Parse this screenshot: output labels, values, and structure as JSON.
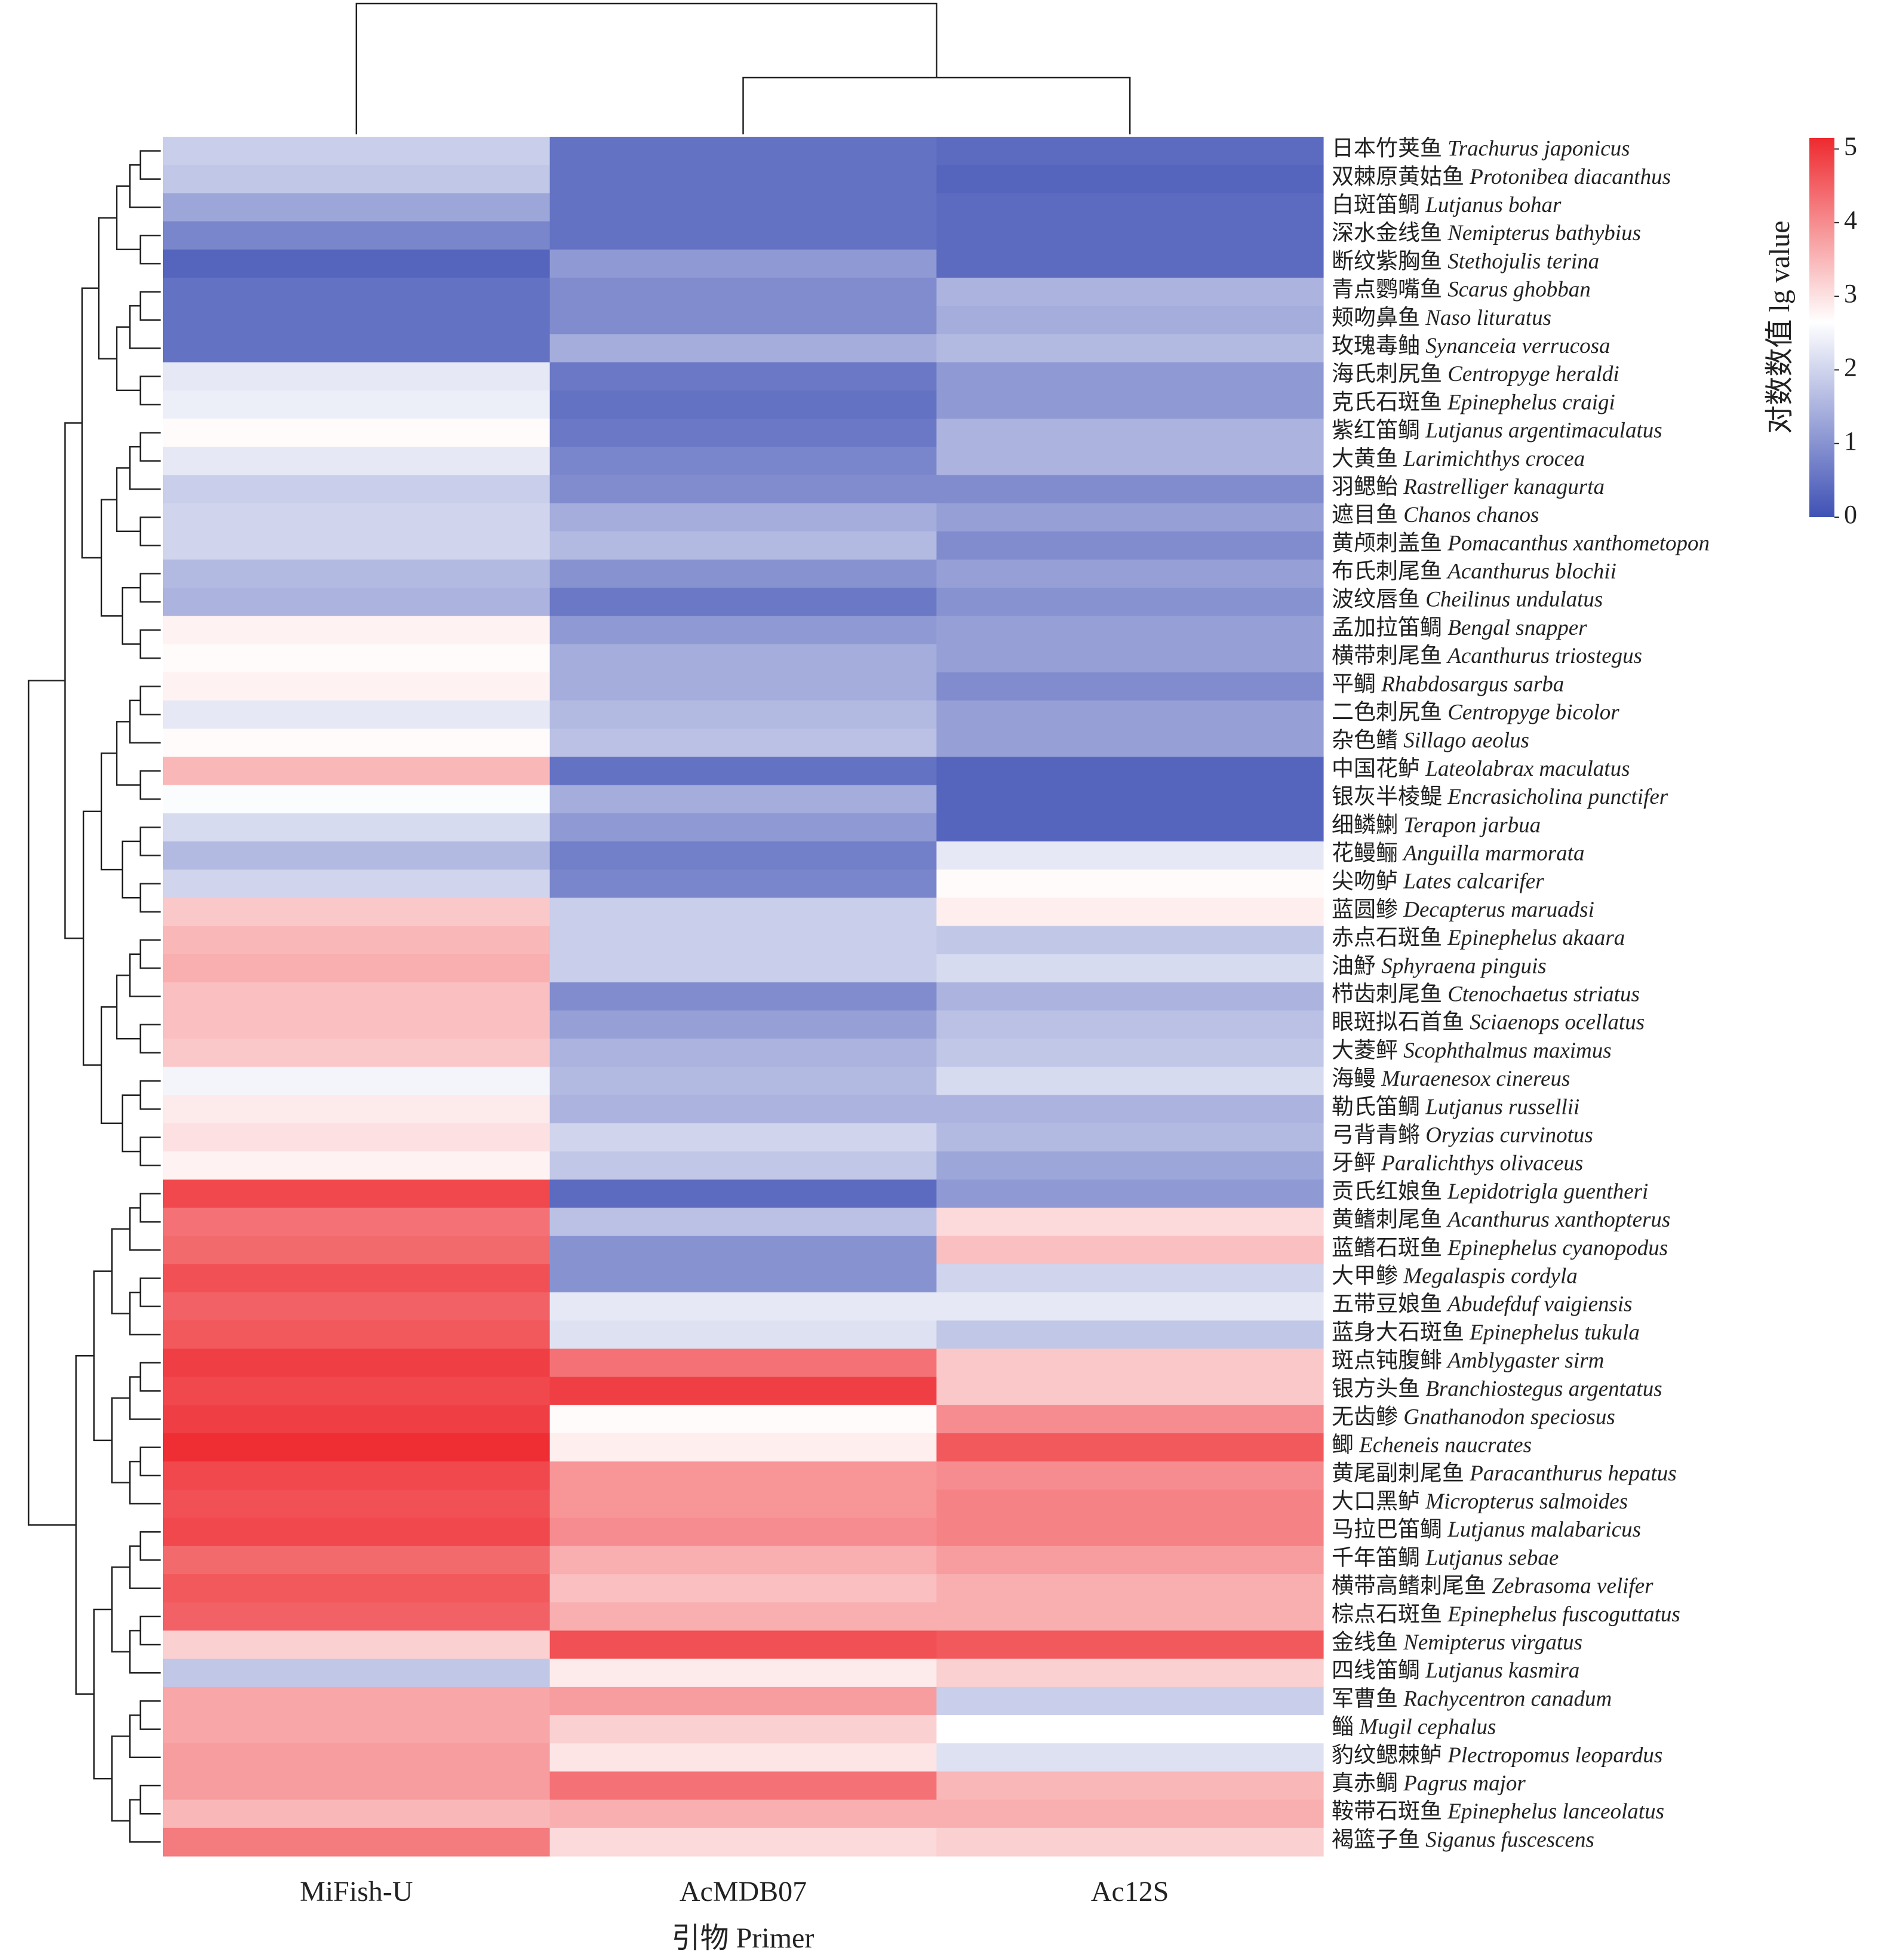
{
  "chart_data": {
    "type": "heatmap",
    "columns": [
      "MiFish-U",
      "AcMDB07",
      "Ac12S"
    ],
    "xlabel": "引物 Primer",
    "colorbar_label": "对数数值 lg value",
    "clim": [
      0,
      5.15
    ],
    "cticks": [
      0,
      1,
      2,
      3,
      4,
      5
    ],
    "colorscale": [
      {
        "value": 0,
        "color": "#3f51b5"
      },
      {
        "value": 2.65,
        "color": "#ffffff"
      },
      {
        "value": 5.15,
        "color": "#ee2a2f"
      }
    ],
    "rows": [
      {
        "cn": "日本竹荚鱼",
        "latin": "Trachurus japonicus"
      },
      {
        "cn": "双棘原黄姑鱼",
        "latin": "Protonibea diacanthus"
      },
      {
        "cn": "白斑笛鲷",
        "latin": "Lutjanus bohar"
      },
      {
        "cn": "深水金线鱼",
        "latin": "Nemipterus bathybius"
      },
      {
        "cn": "断纹紫胸鱼",
        "latin": "Stethojulis terina"
      },
      {
        "cn": "青点鹦嘴鱼",
        "latin": "Scarus ghobban"
      },
      {
        "cn": "颊吻鼻鱼",
        "latin": "Naso lituratus"
      },
      {
        "cn": "玫瑰毒鲉",
        "latin": "Synanceia verrucosa"
      },
      {
        "cn": "海氏刺尻鱼",
        "latin": "Centropyge heraldi"
      },
      {
        "cn": "克氏石斑鱼",
        "latin": "Epinephelus craigi"
      },
      {
        "cn": "紫红笛鲷",
        "latin": "Lutjanus argentimaculatus"
      },
      {
        "cn": "大黄鱼",
        "latin": "Larimichthys crocea"
      },
      {
        "cn": "羽鳃鲐",
        "latin": "Rastrelliger kanagurta"
      },
      {
        "cn": "遮目鱼",
        "latin": "Chanos chanos"
      },
      {
        "cn": "黄颅刺盖鱼",
        "latin": "Pomacanthus xanthometopon"
      },
      {
        "cn": "布氏刺尾鱼",
        "latin": "Acanthurus blochii"
      },
      {
        "cn": "波纹唇鱼",
        "latin": "Cheilinus undulatus"
      },
      {
        "cn": "孟加拉笛鲷",
        "latin": "Bengal snapper"
      },
      {
        "cn": "横带刺尾鱼",
        "latin": "Acanthurus triostegus"
      },
      {
        "cn": "平鲷",
        "latin": "Rhabdosargus sarba"
      },
      {
        "cn": "二色刺尻鱼",
        "latin": "Centropyge bicolor"
      },
      {
        "cn": "杂色鳍",
        "latin": "Sillago aeolus"
      },
      {
        "cn": "中国花鲈",
        "latin": "Lateolabrax maculatus"
      },
      {
        "cn": "银灰半棱鳀",
        "latin": "Encrasicholina punctifer"
      },
      {
        "cn": "细鳞鯻",
        "latin": "Terapon jarbua"
      },
      {
        "cn": "花鳗鲡",
        "latin": "Anguilla marmorata"
      },
      {
        "cn": "尖吻鲈",
        "latin": "Lates calcarifer"
      },
      {
        "cn": "蓝圆鲹",
        "latin": "Decapterus maruadsi"
      },
      {
        "cn": "赤点石斑鱼",
        "latin": "Epinephelus akaara"
      },
      {
        "cn": "油魣",
        "latin": "Sphyraena pinguis"
      },
      {
        "cn": "栉齿刺尾鱼",
        "latin": "Ctenochaetus striatus"
      },
      {
        "cn": "眼斑拟石首鱼",
        "latin": "Sciaenops ocellatus"
      },
      {
        "cn": "大菱鲆",
        "latin": "Scophthalmus maximus"
      },
      {
        "cn": "海鳗",
        "latin": "Muraenesox cinereus"
      },
      {
        "cn": "勒氏笛鲷",
        "latin": "Lutjanus russellii"
      },
      {
        "cn": "弓背青鳉",
        "latin": "Oryzias curvinotus"
      },
      {
        "cn": "牙鲆",
        "latin": "Paralichthys olivaceus"
      },
      {
        "cn": "贡氏红娘鱼",
        "latin": "Lepidotrigla guentheri"
      },
      {
        "cn": "黄鳍刺尾鱼",
        "latin": "Acanthurus xanthopterus"
      },
      {
        "cn": "蓝鳍石斑鱼",
        "latin": "Epinephelus cyanopodus"
      },
      {
        "cn": "大甲鲹",
        "latin": "Megalaspis cordyla"
      },
      {
        "cn": "五带豆娘鱼",
        "latin": "Abudefduf vaigiensis"
      },
      {
        "cn": "蓝身大石斑鱼",
        "latin": "Epinephelus tukula"
      },
      {
        "cn": "斑点钝腹鲱",
        "latin": "Amblygaster sirm"
      },
      {
        "cn": "银方头鱼",
        "latin": "Branchiostegus argentatus"
      },
      {
        "cn": "无齿鲹",
        "latin": "Gnathanodon speciosus"
      },
      {
        "cn": "鲫",
        "latin": "Echeneis naucrates"
      },
      {
        "cn": "黄尾副刺尾鱼",
        "latin": "Paracanthurus hepatus"
      },
      {
        "cn": "大口黑鲈",
        "latin": "Micropterus salmoides"
      },
      {
        "cn": "马拉巴笛鲷",
        "latin": "Lutjanus malabaricus"
      },
      {
        "cn": "千年笛鲷",
        "latin": "Lutjanus sebae"
      },
      {
        "cn": "横带高鳍刺尾鱼",
        "latin": "Zebrasoma velifer"
      },
      {
        "cn": "棕点石斑鱼",
        "latin": "Epinephelus fuscoguttatus"
      },
      {
        "cn": "金线鱼",
        "latin": "Nemipterus virgatus"
      },
      {
        "cn": "四线笛鲷",
        "latin": "Lutjanus kasmira"
      },
      {
        "cn": "军曹鱼",
        "latin": "Rachycentron canadum"
      },
      {
        "cn": "鲻",
        "latin": "Mugil cephalus"
      },
      {
        "cn": "豹纹鳃棘鲈",
        "latin": "Plectropomus leopardus"
      },
      {
        "cn": "真赤鲷",
        "latin": "Pagrus major"
      },
      {
        "cn": "鞍带石斑鱼",
        "latin": "Epinephelus lanceolatus"
      },
      {
        "cn": "褐篮子鱼",
        "latin": "Siganus fuscescens"
      }
    ],
    "values": [
      [
        1.9,
        0.5,
        0.4
      ],
      [
        1.8,
        0.5,
        0.3
      ],
      [
        1.3,
        0.5,
        0.4
      ],
      [
        0.8,
        0.5,
        0.4
      ],
      [
        0.3,
        1.1,
        0.4
      ],
      [
        0.5,
        0.9,
        1.5
      ],
      [
        0.5,
        0.9,
        1.4
      ],
      [
        0.5,
        1.4,
        1.6
      ],
      [
        2.3,
        0.6,
        1.1
      ],
      [
        2.4,
        0.5,
        1.1
      ],
      [
        2.7,
        0.6,
        1.5
      ],
      [
        2.3,
        0.8,
        1.5
      ],
      [
        1.9,
        0.9,
        0.9
      ],
      [
        2.0,
        1.4,
        1.2
      ],
      [
        2.0,
        1.6,
        0.9
      ],
      [
        1.6,
        1.0,
        1.2
      ],
      [
        1.5,
        0.6,
        1.0
      ],
      [
        2.8,
        1.1,
        1.2
      ],
      [
        2.7,
        1.4,
        1.2
      ],
      [
        2.8,
        1.4,
        0.9
      ],
      [
        2.3,
        1.6,
        1.2
      ],
      [
        2.7,
        1.7,
        1.2
      ],
      [
        3.5,
        0.5,
        0.3
      ],
      [
        2.6,
        1.4,
        0.3
      ],
      [
        2.1,
        1.1,
        0.3
      ],
      [
        1.6,
        0.7,
        2.3
      ],
      [
        2.0,
        0.8,
        2.7
      ],
      [
        3.3,
        1.9,
        2.85
      ],
      [
        3.5,
        1.9,
        1.8
      ],
      [
        3.6,
        1.9,
        2.1
      ],
      [
        3.4,
        0.9,
        1.5
      ],
      [
        3.4,
        1.2,
        1.7
      ],
      [
        3.3,
        1.5,
        1.8
      ],
      [
        2.5,
        1.6,
        2.1
      ],
      [
        2.9,
        1.5,
        1.5
      ],
      [
        3.0,
        2.0,
        1.6
      ],
      [
        2.8,
        1.8,
        1.3
      ],
      [
        4.8,
        0.4,
        1.1
      ],
      [
        4.3,
        1.7,
        3.1
      ],
      [
        4.4,
        1.0,
        3.4
      ],
      [
        4.7,
        1.0,
        2.0
      ],
      [
        4.5,
        2.3,
        2.3
      ],
      [
        4.6,
        2.2,
        1.8
      ],
      [
        4.9,
        4.3,
        3.3
      ],
      [
        4.8,
        4.9,
        3.3
      ],
      [
        4.9,
        2.7,
        4.0
      ],
      [
        5.1,
        2.85,
        4.6
      ],
      [
        4.8,
        3.9,
        4.0
      ],
      [
        4.7,
        3.9,
        4.1
      ],
      [
        4.8,
        4.0,
        4.1
      ],
      [
        4.4,
        3.6,
        3.8
      ],
      [
        4.6,
        3.4,
        3.6
      ],
      [
        4.5,
        3.6,
        3.6
      ],
      [
        3.2,
        4.7,
        4.6
      ],
      [
        1.8,
        2.9,
        3.2
      ],
      [
        3.7,
        3.8,
        1.9
      ],
      [
        3.7,
        3.2,
        2.65
      ],
      [
        3.8,
        2.95,
        2.2
      ],
      [
        3.8,
        4.3,
        3.5
      ],
      [
        3.5,
        3.6,
        3.6
      ],
      [
        4.2,
        3.1,
        3.2
      ]
    ]
  }
}
